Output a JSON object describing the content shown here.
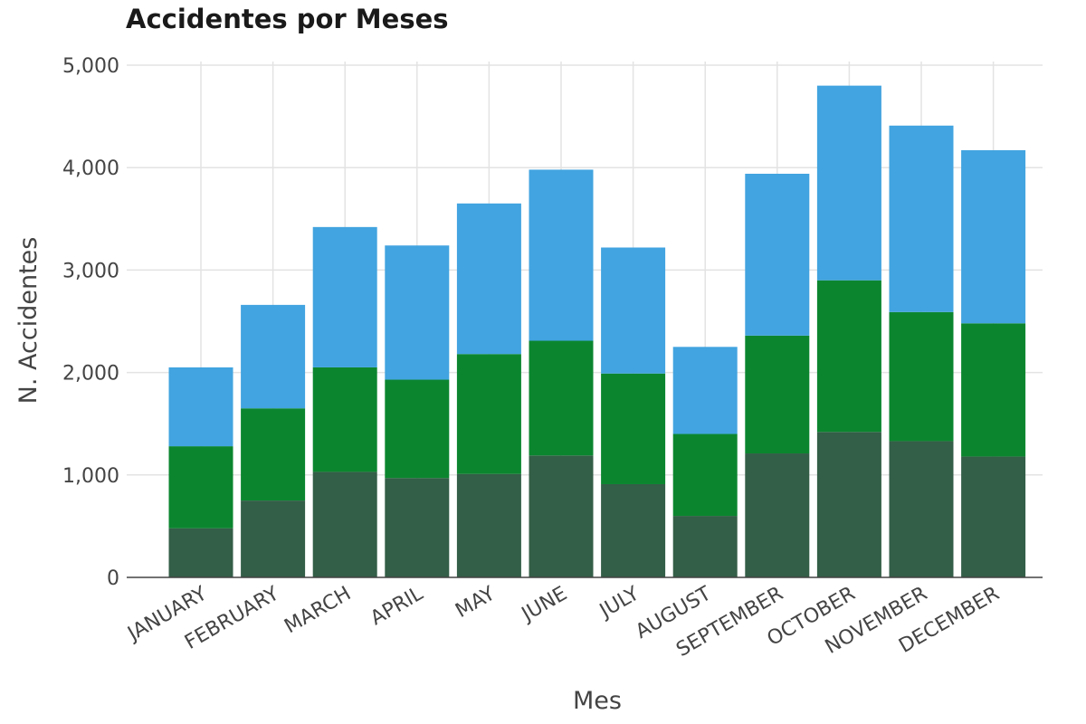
{
  "chart_data": {
    "type": "bar",
    "stacked": true,
    "title": "Accidentes por Meses",
    "xlabel": "Mes",
    "ylabel": "N. Accidentes",
    "ylim": [
      0,
      5000
    ],
    "yticks": [
      0,
      1000,
      2000,
      3000,
      4000,
      5000
    ],
    "ytick_labels": [
      "0",
      "1,000",
      "2,000",
      "3,000",
      "4,000",
      "5,000"
    ],
    "grid": true,
    "legend": "none",
    "categories": [
      "JANUARY",
      "FEBRUARY",
      "MARCH",
      "APRIL",
      "MAY",
      "JUNE",
      "JULY",
      "AUGUST",
      "SEPTEMBER",
      "OCTOBER",
      "NOVEMBER",
      "DECEMBER"
    ],
    "series": [
      {
        "color": "#335e47",
        "values": [
          480,
          750,
          1030,
          970,
          1010,
          1190,
          910,
          600,
          1210,
          1420,
          1330,
          1180
        ]
      },
      {
        "color": "#0b862f",
        "values": [
          800,
          900,
          1020,
          960,
          1170,
          1120,
          1080,
          800,
          1150,
          1480,
          1260,
          1300
        ]
      },
      {
        "color": "#42a4e0",
        "values": [
          770,
          1010,
          1370,
          1310,
          1470,
          1670,
          1230,
          850,
          1580,
          1900,
          1820,
          1690
        ]
      }
    ]
  }
}
